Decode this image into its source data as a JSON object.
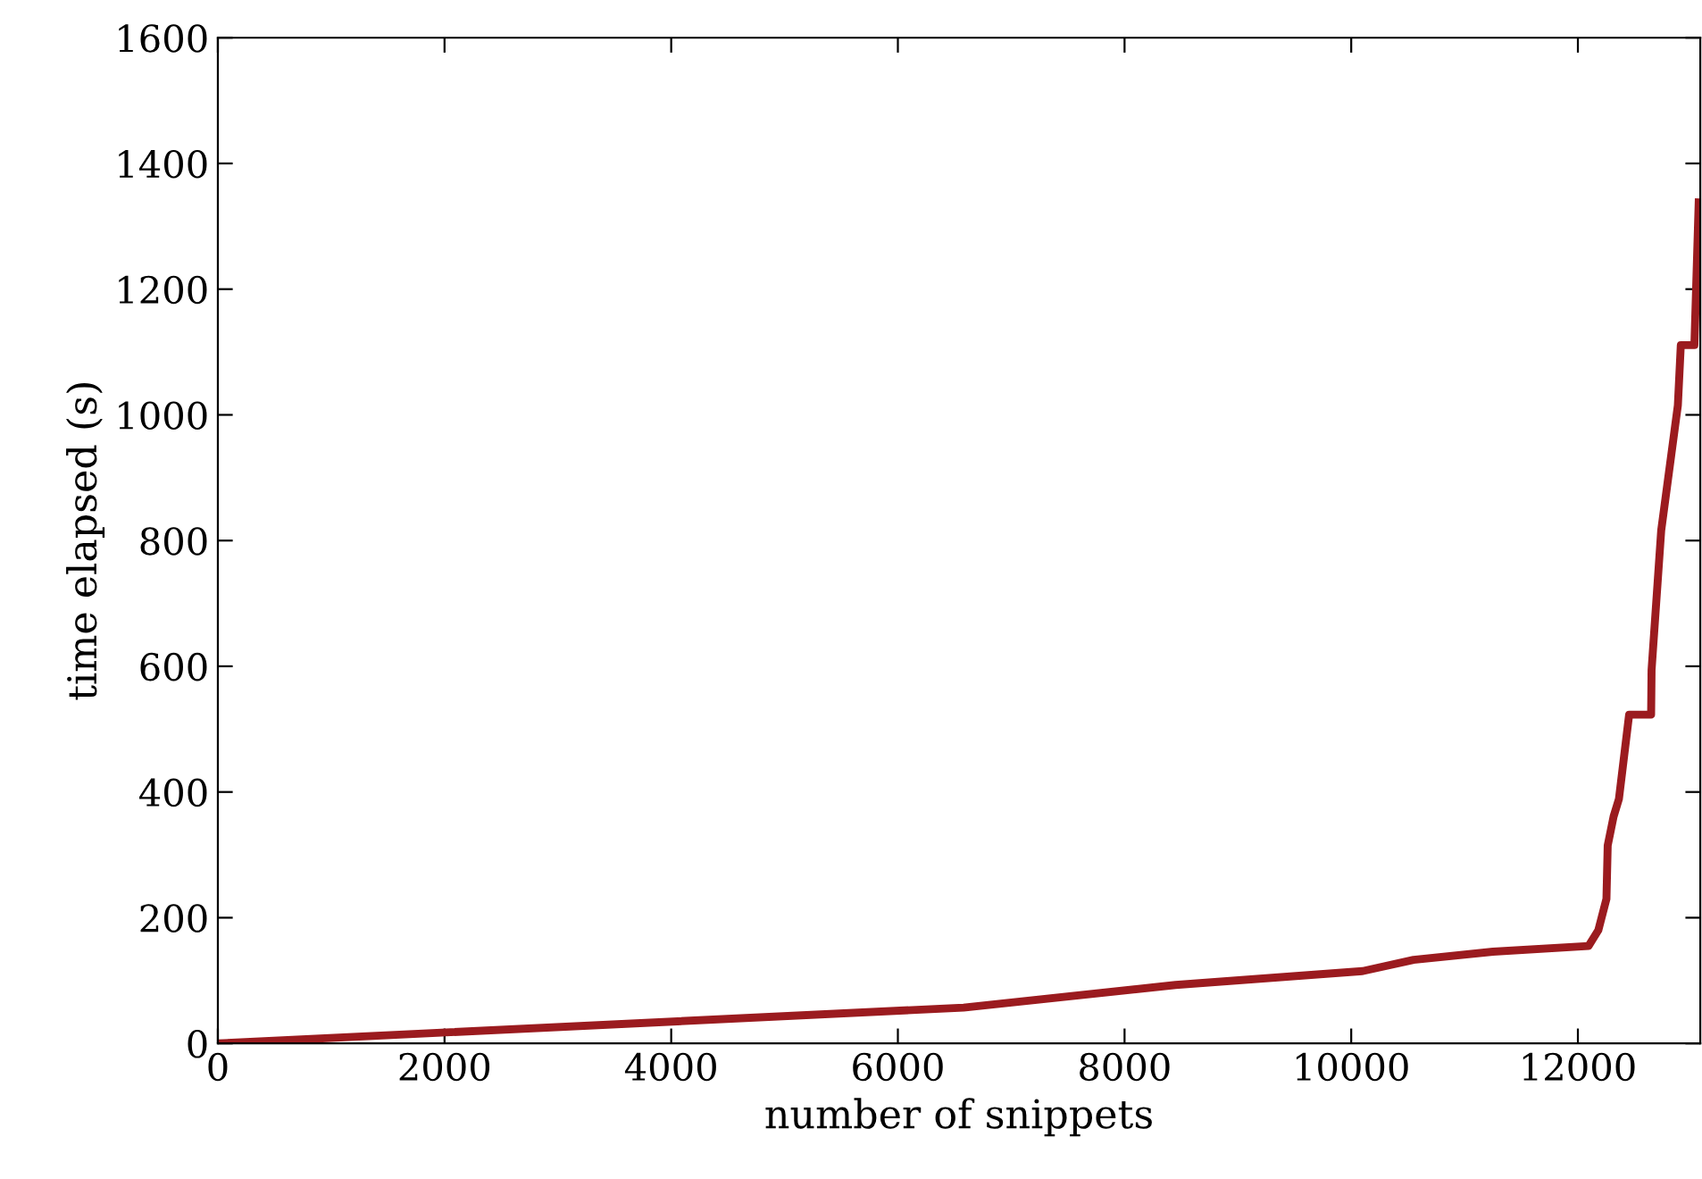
{
  "chart_data": {
    "type": "line",
    "xlabel": "number of snippets",
    "ylabel": "time elapsed (s)",
    "x": [
      0,
      6580,
      8450,
      10100,
      10550,
      11250,
      12094,
      12180,
      12252,
      12263,
      12315,
      12362,
      12452,
      12646,
      12650,
      12735,
      12882,
      12908,
      13028,
      13066
    ],
    "series": [
      {
        "color": "#9b1b1f",
        "values": [
          0,
          57,
          93,
          115,
          133,
          146,
          155,
          180,
          230,
          315,
          361,
          389,
          523,
          523,
          594,
          816,
          1015,
          1111,
          1111,
          1338
        ]
      }
    ],
    "xlim": [
      0,
      13080
    ],
    "ylim": [
      0,
      1600
    ],
    "xticks": [
      0,
      2000,
      4000,
      6000,
      8000,
      10000,
      12000
    ],
    "yticks": [
      0,
      200,
      400,
      600,
      800,
      1000,
      1200,
      1400,
      1600
    ],
    "grid": false,
    "legend": false
  }
}
